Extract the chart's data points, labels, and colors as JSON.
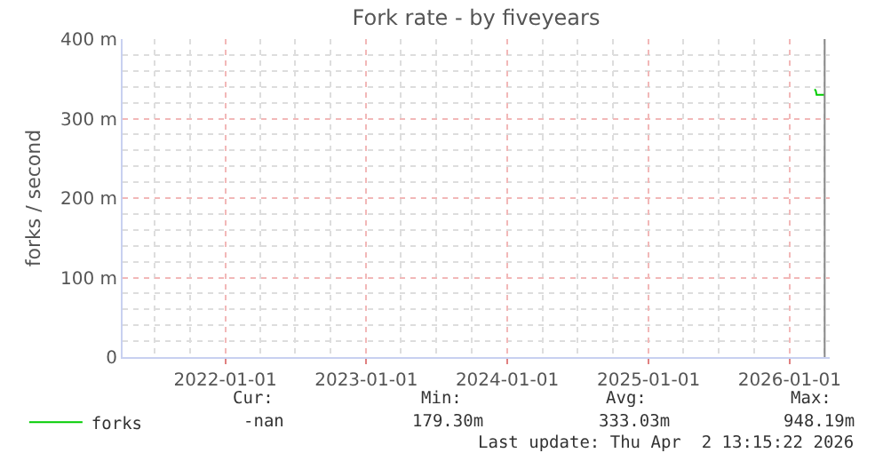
{
  "chart_data": {
    "type": "line",
    "title": "Fork rate - by fiveyears",
    "ylabel": "forks / second",
    "x": [
      "2026-03-07",
      "2026-03-10",
      "2026-03-12",
      "2026-04-01"
    ],
    "series": [
      {
        "name": "forks",
        "color": "#00cc00",
        "values": [
          337,
          335,
          330,
          330
        ]
      }
    ],
    "xlim": [
      "2021-04-10",
      "2026-04-15"
    ],
    "xticks": [
      {
        "value": "2022-01-01",
        "label": "2022-01-01"
      },
      {
        "value": "2023-01-01",
        "label": "2023-01-01"
      },
      {
        "value": "2024-01-01",
        "label": "2024-01-01"
      },
      {
        "value": "2025-01-01",
        "label": "2025-01-01"
      },
      {
        "value": "2026-01-01",
        "label": "2026-01-01"
      }
    ],
    "ylim": [
      0,
      400
    ],
    "yticks": [
      0,
      {
        "value": 100,
        "label": "100 m"
      },
      {
        "value": 200,
        "label": "200 m"
      },
      {
        "value": 300,
        "label": "300 m"
      },
      {
        "value": 400,
        "label": "400 m"
      }
    ],
    "grid": true,
    "legend": "bottom left",
    "marker": "none",
    "line_style": "solid",
    "ref_lines": [
      {
        "axis": "x",
        "value": "2026-04-02",
        "color": "#888888"
      }
    ],
    "annotations": [
      "Cur:",
      "Min:",
      "Avg:",
      "Max:",
      "-nan",
      "179.30m",
      "333.03m",
      "948.19m",
      "Last update: Thu Apr  2 13:15:22 2026"
    ]
  }
}
